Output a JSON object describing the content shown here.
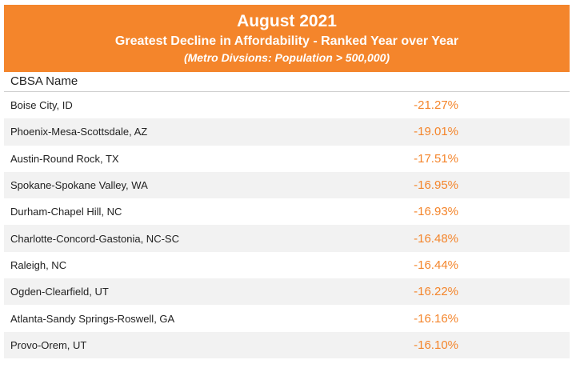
{
  "header": {
    "title": "August 2021",
    "subtitle": "Greatest Decline in Affordability - Ranked Year over Year",
    "note": "(Metro Divsions: Population > 500,000)"
  },
  "table": {
    "column_header": "CBSA Name"
  },
  "colors": {
    "banner": "#F4852B",
    "value_text": "#F4852B",
    "row_stripe": "#f2f2f2"
  },
  "chart_data": {
    "type": "table",
    "title": "August 2021",
    "subtitle": "Greatest Decline in Affordability - Ranked Year over Year",
    "columns": [
      "CBSA Name",
      ""
    ],
    "rows": [
      {
        "name": "Boise City, ID",
        "value": "-21.27%"
      },
      {
        "name": "Phoenix-Mesa-Scottsdale, AZ",
        "value": "-19.01%"
      },
      {
        "name": "Austin-Round Rock, TX",
        "value": "-17.51%"
      },
      {
        "name": "Spokane-Spokane Valley, WA",
        "value": "-16.95%"
      },
      {
        "name": "Durham-Chapel Hill, NC",
        "value": "-16.93%"
      },
      {
        "name": "Charlotte-Concord-Gastonia, NC-SC",
        "value": "-16.48%"
      },
      {
        "name": "Raleigh, NC",
        "value": "-16.44%"
      },
      {
        "name": "Ogden-Clearfield, UT",
        "value": "-16.22%"
      },
      {
        "name": "Atlanta-Sandy Springs-Roswell, GA",
        "value": "-16.16%"
      },
      {
        "name": "Provo-Orem, UT",
        "value": "-16.10%"
      }
    ]
  }
}
